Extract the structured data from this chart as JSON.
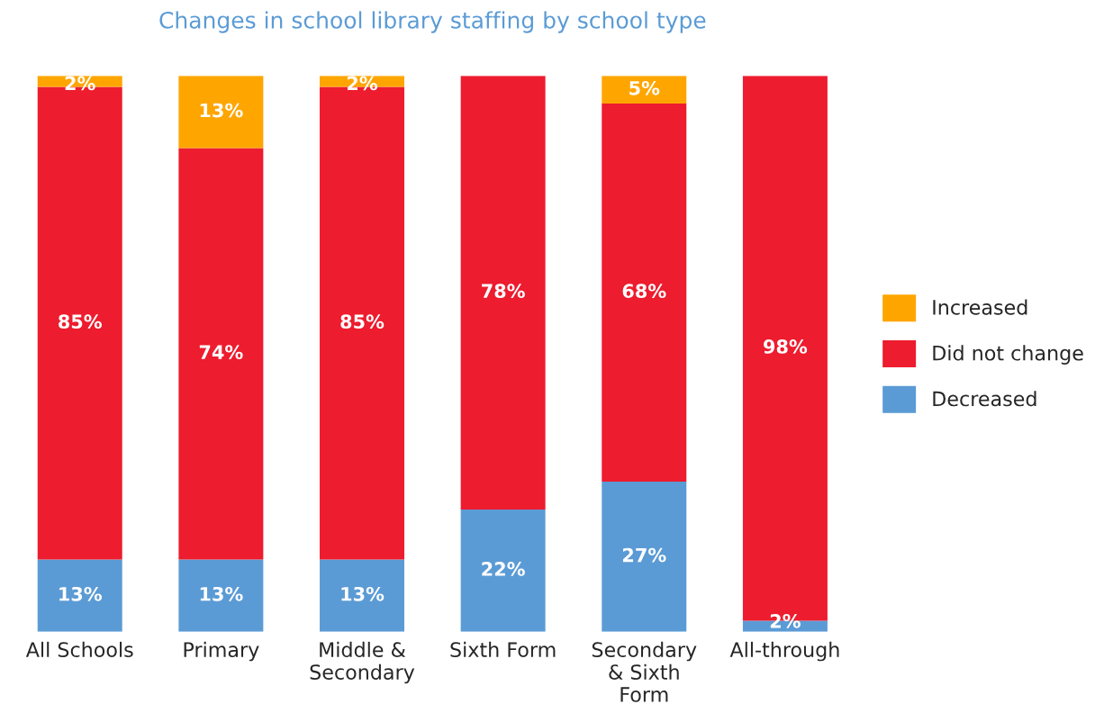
{
  "chart_data": {
    "type": "bar",
    "title": "Changes in school library staffing by school type",
    "categories": [
      "All Schools",
      "Primary",
      "Middle &\nSecondary",
      "Sixth Form",
      "Secondary\n& Sixth\nForm",
      "All-through"
    ],
    "stacked": true,
    "legend": "right",
    "series": [
      {
        "name": "Decreased",
        "color": "#5b9bd5",
        "values": [
          13,
          13,
          13,
          22,
          27,
          2
        ],
        "value_labels": [
          "13%",
          "13%",
          "13%",
          "22%",
          "27%",
          "2%"
        ]
      },
      {
        "name": "Did not change",
        "color": "#ed1c2e",
        "values": [
          85,
          74,
          85,
          78,
          68,
          98
        ],
        "value_labels": [
          "85%",
          "74%",
          "85%",
          "78%",
          "68%",
          "98%"
        ]
      },
      {
        "name": "Increased",
        "color": "#ffa500",
        "values": [
          2,
          13,
          2,
          null,
          5,
          null
        ],
        "value_labels": [
          "2%",
          "13%",
          "2%",
          null,
          "5%",
          null
        ]
      }
    ]
  }
}
